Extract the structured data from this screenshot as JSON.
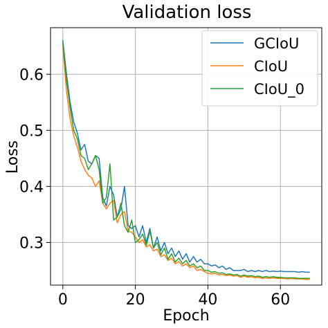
{
  "chart_data": {
    "type": "line",
    "title": "Validation loss",
    "xlabel": "Epoch",
    "ylabel": "Loss",
    "xlim": [
      -3.4,
      71.4
    ],
    "ylim": [
      0.224,
      0.683
    ],
    "xticks": [
      0,
      20,
      40,
      60
    ],
    "yticks": [
      0.3,
      0.4,
      0.5,
      0.6
    ],
    "ytick_labels": [
      "0.3",
      "0.4",
      "0.5",
      "0.6"
    ],
    "grid": true,
    "legend_position": "top-right",
    "x": [
      0,
      1,
      2,
      3,
      4,
      5,
      6,
      7,
      8,
      9,
      10,
      11,
      12,
      13,
      14,
      15,
      16,
      17,
      18,
      19,
      20,
      21,
      22,
      23,
      24,
      25,
      26,
      27,
      28,
      29,
      30,
      31,
      32,
      33,
      34,
      35,
      36,
      37,
      38,
      39,
      40,
      41,
      42,
      43,
      44,
      45,
      46,
      47,
      48,
      49,
      50,
      51,
      52,
      53,
      54,
      55,
      56,
      57,
      58,
      59,
      60,
      61,
      62,
      63,
      64,
      65,
      66,
      67,
      68
    ],
    "series": [
      {
        "name": "GCIoU",
        "color": "#1f77b4",
        "values": [
          0.66,
          0.6,
          0.55,
          0.515,
          0.495,
          0.465,
          0.475,
          0.445,
          0.44,
          0.455,
          0.45,
          0.38,
          0.365,
          0.4,
          0.385,
          0.345,
          0.36,
          0.4,
          0.33,
          0.325,
          0.33,
          0.31,
          0.33,
          0.3,
          0.325,
          0.29,
          0.31,
          0.285,
          0.3,
          0.28,
          0.29,
          0.275,
          0.285,
          0.27,
          0.28,
          0.265,
          0.275,
          0.265,
          0.27,
          0.262,
          0.262,
          0.258,
          0.26,
          0.255,
          0.258,
          0.252,
          0.255,
          0.25,
          0.25,
          0.25,
          0.252,
          0.248,
          0.25,
          0.248,
          0.25,
          0.248,
          0.25,
          0.248,
          0.249,
          0.248,
          0.249,
          0.248,
          0.248,
          0.248,
          0.248,
          0.247,
          0.248,
          0.247,
          0.247
        ]
      },
      {
        "name": "CIoU",
        "color": "#ff7f0e",
        "values": [
          0.65,
          0.57,
          0.52,
          0.49,
          0.47,
          0.445,
          0.43,
          0.42,
          0.415,
          0.4,
          0.41,
          0.37,
          0.36,
          0.37,
          0.375,
          0.335,
          0.35,
          0.355,
          0.32,
          0.318,
          0.31,
          0.3,
          0.305,
          0.292,
          0.296,
          0.285,
          0.288,
          0.275,
          0.278,
          0.268,
          0.272,
          0.262,
          0.266,
          0.258,
          0.262,
          0.255,
          0.258,
          0.25,
          0.252,
          0.248,
          0.245,
          0.244,
          0.245,
          0.242,
          0.243,
          0.241,
          0.242,
          0.24,
          0.241,
          0.238,
          0.24,
          0.238,
          0.239,
          0.237,
          0.238,
          0.236,
          0.237,
          0.236,
          0.237,
          0.236,
          0.236,
          0.236,
          0.235,
          0.236,
          0.235,
          0.235,
          0.235,
          0.234,
          0.234
        ]
      },
      {
        "name": "CIoU_0",
        "color": "#2ca02c",
        "values": [
          0.655,
          0.59,
          0.54,
          0.5,
          0.485,
          0.455,
          0.45,
          0.43,
          0.44,
          0.455,
          0.43,
          0.37,
          0.38,
          0.44,
          0.34,
          0.345,
          0.37,
          0.33,
          0.318,
          0.34,
          0.3,
          0.305,
          0.315,
          0.295,
          0.32,
          0.29,
          0.3,
          0.278,
          0.29,
          0.27,
          0.28,
          0.265,
          0.272,
          0.262,
          0.268,
          0.258,
          0.262,
          0.255,
          0.258,
          0.25,
          0.25,
          0.247,
          0.248,
          0.245,
          0.246,
          0.243,
          0.244,
          0.242,
          0.243,
          0.24,
          0.242,
          0.24,
          0.241,
          0.239,
          0.24,
          0.238,
          0.239,
          0.238,
          0.239,
          0.238,
          0.238,
          0.237,
          0.237,
          0.237,
          0.237,
          0.236,
          0.236,
          0.236,
          0.236
        ]
      }
    ]
  }
}
